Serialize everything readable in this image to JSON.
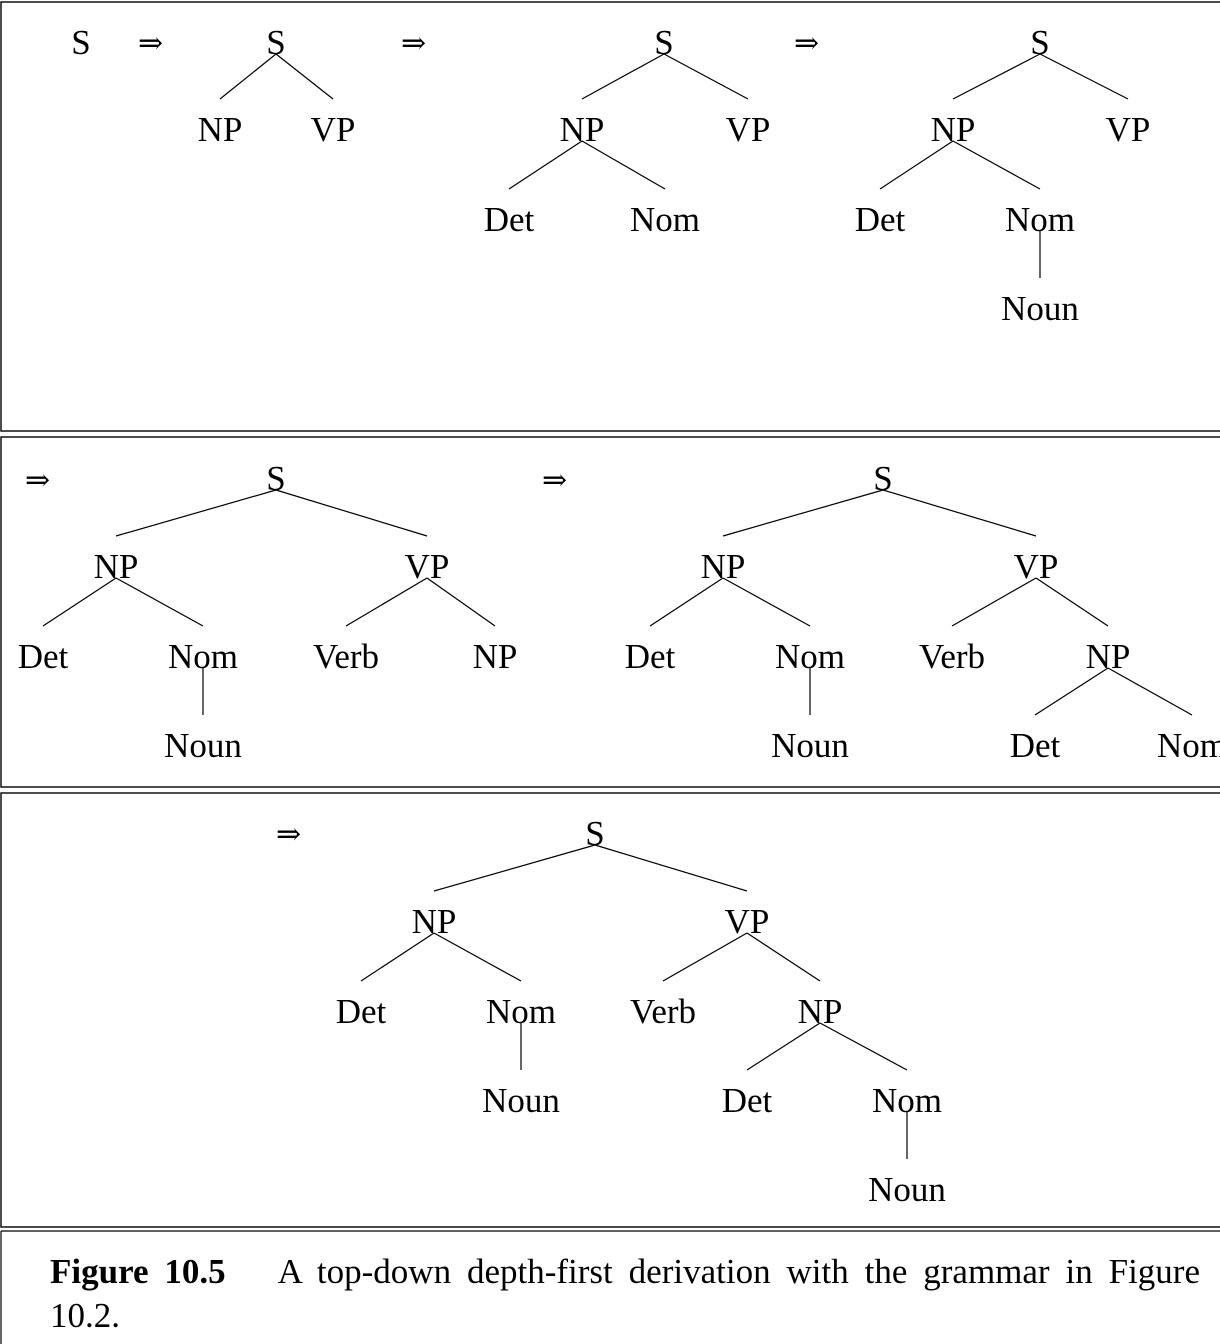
{
  "caption": {
    "label": "Figure 10.5",
    "text": "A top-down depth-first derivation with the grammar in Figure 10.2."
  },
  "derivation_symbol": "⇒",
  "panels": [
    {
      "steps": [
        {
          "root": "S"
        },
        {
          "root": "S"
        },
        {
          "root": "S"
        },
        {
          "root": "S"
        }
      ]
    },
    {
      "steps": [
        {
          "root": "S"
        },
        {
          "root": "S"
        }
      ]
    },
    {
      "steps": [
        {
          "root": "S"
        }
      ]
    }
  ],
  "node_labels": {
    "s": "S",
    "np": "NP",
    "vp": "VP",
    "det": "Det",
    "nom": "Nom",
    "noun": "Noun",
    "verb": "Verb",
    "nom_clipped": "Nom"
  }
}
